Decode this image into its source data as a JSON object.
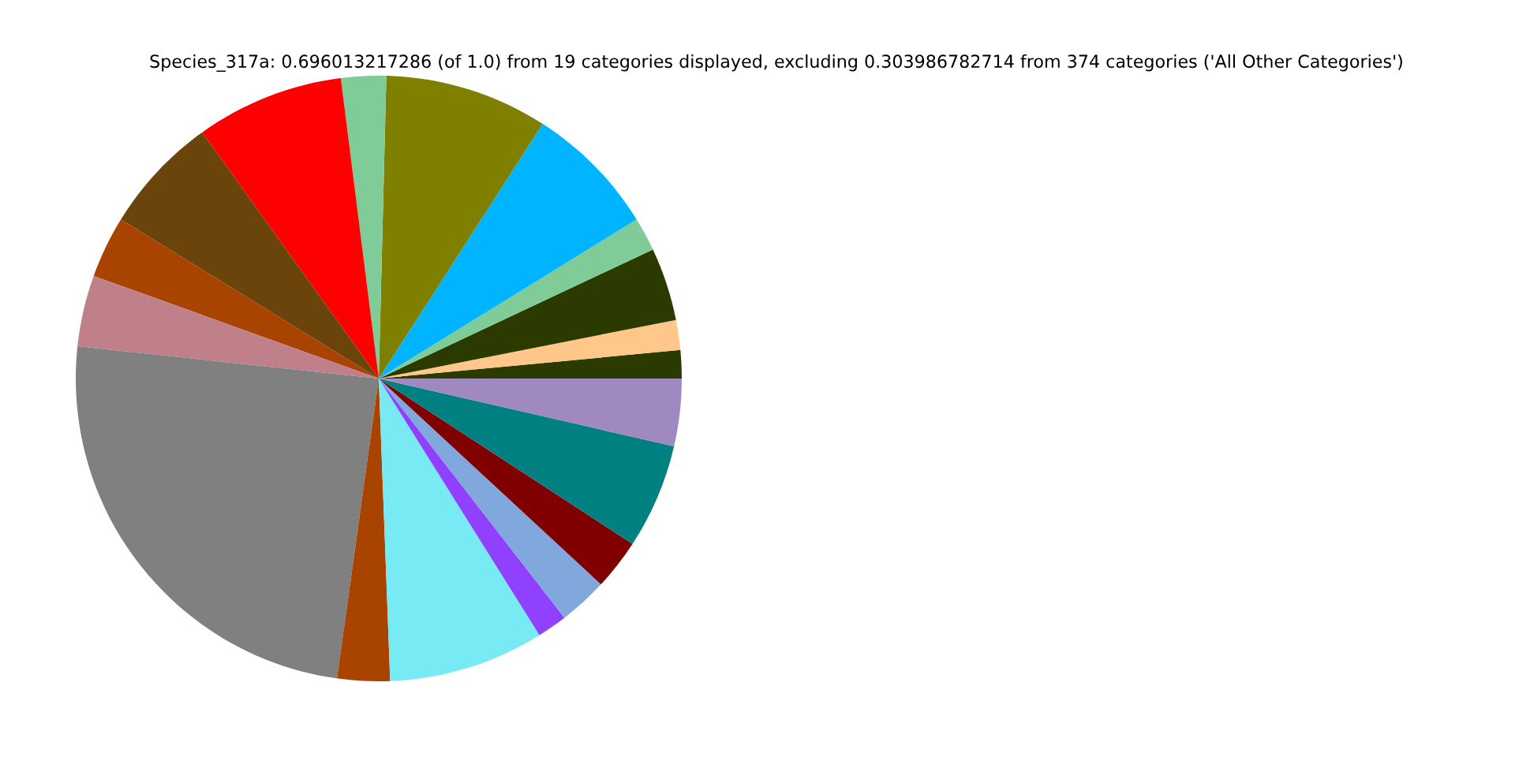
{
  "chart_data": {
    "type": "pie",
    "title": "Species_317a: 0.696013217286 (of 1.0) from 19 categories displayed, excluding 0.303986782714 from 374 categories ('All Other Categories')",
    "categories": [
      null,
      null,
      null,
      null,
      null,
      null,
      null,
      null,
      null,
      null,
      null,
      null,
      null,
      null,
      null,
      null,
      null,
      null,
      null
    ],
    "values": [
      1.5,
      1.6,
      3.9,
      1.8,
      7.1,
      8.7,
      2.4,
      7.9,
      6.3,
      3.3,
      3.8,
      24.5,
      2.8,
      8.3,
      1.6,
      2.6,
      2.7,
      5.6,
      3.6
    ],
    "colors": [
      "#2b3b00",
      "#ffc88a",
      "#2b3b00",
      "#80cc99",
      "#00b4ff",
      "#808000",
      "#80cc99",
      "#ff0000",
      "#6b440c",
      "#a84400",
      "#c0808a",
      "#808080",
      "#a84400",
      "#78eaf4",
      "#9040ff",
      "#80a8dc",
      "#800000",
      "#008080",
      "#a088c0"
    ]
  }
}
